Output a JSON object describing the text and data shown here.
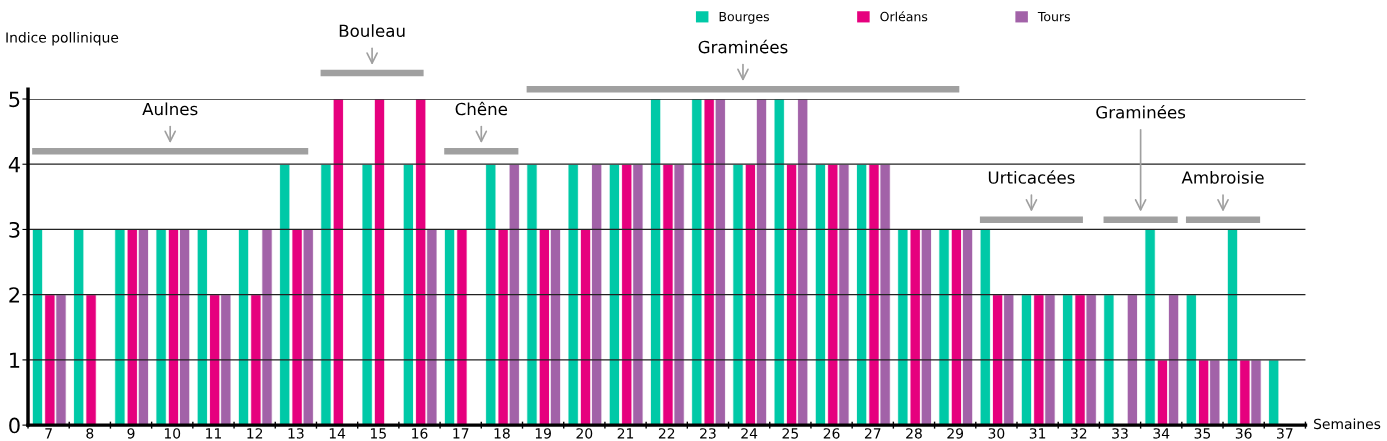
{
  "chart_data": {
    "type": "bar",
    "ylabel": "Indice pollinique",
    "xlabel": "Semaines",
    "categories": [
      "7",
      "8",
      "9",
      "10",
      "11",
      "12",
      "13",
      "14",
      "15",
      "16",
      "17",
      "18",
      "19",
      "20",
      "21",
      "22",
      "23",
      "24",
      "25",
      "26",
      "27",
      "28",
      "29",
      "30",
      "31",
      "32",
      "33",
      "34",
      "35",
      "36",
      "37"
    ],
    "series": [
      {
        "name": "Bourges",
        "color": "#00c9a7",
        "values": [
          3,
          3,
          3,
          3,
          3,
          3,
          4,
          4,
          4,
          4,
          3,
          4,
          4,
          4,
          4,
          5,
          5,
          4,
          5,
          4,
          4,
          3,
          3,
          3,
          2,
          2,
          2,
          3,
          2,
          3,
          1
        ]
      },
      {
        "name": "Orléans",
        "color": "#e6007e",
        "values": [
          2,
          2,
          3,
          3,
          2,
          2,
          3,
          5,
          5,
          5,
          3,
          3,
          3,
          3,
          4,
          4,
          5,
          4,
          4,
          4,
          4,
          3,
          3,
          2,
          2,
          2,
          null,
          1,
          1,
          1,
          null
        ]
      },
      {
        "name": "Tours",
        "color": "#a262a8",
        "values": [
          2,
          null,
          3,
          3,
          2,
          3,
          3,
          null,
          null,
          3,
          null,
          4,
          3,
          4,
          4,
          4,
          5,
          5,
          5,
          4,
          4,
          3,
          3,
          2,
          2,
          2,
          2,
          2,
          1,
          1,
          null
        ]
      }
    ],
    "ylim": [
      0,
      5
    ],
    "yticks": [
      0,
      1,
      2,
      3,
      4,
      5
    ],
    "grid": "y",
    "legend": "top right",
    "annotations": [
      "Aulnes",
      "Bouleau",
      "Chêne",
      "Graminées",
      "Urticacées",
      "Graminées",
      "Ambroisie"
    ]
  }
}
